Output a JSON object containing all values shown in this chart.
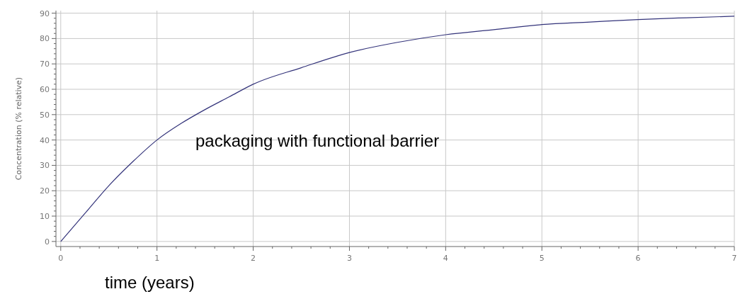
{
  "chart_data": {
    "type": "line",
    "ylabel": "Concentration (% relative)",
    "xlabel": "time (years)",
    "annotations": [
      "packaging with functional barrier"
    ],
    "x": [
      0,
      0.25,
      0.5,
      0.75,
      1,
      1.25,
      1.5,
      1.75,
      2,
      2.5,
      3,
      3.5,
      4,
      4.5,
      5,
      5.5,
      6,
      6.5,
      7
    ],
    "series": [
      {
        "color": "#33337a",
        "values": [
          0,
          11,
          22,
          31.5,
          40,
          46.5,
          52,
          57,
          62,
          68.5,
          74.5,
          78.5,
          81.5,
          83.5,
          85.5,
          86.5,
          87.5,
          88.2,
          88.8
        ]
      }
    ],
    "xlim": [
      -0.05,
      7
    ],
    "ylim": [
      -2,
      91
    ],
    "xticks": [
      0,
      {
        "value": 0.2,
        "label": null
      },
      {
        "value": 0.4,
        "label": null
      },
      {
        "value": 0.6,
        "label": null
      },
      {
        "value": 0.8,
        "label": null
      },
      1,
      {
        "value": 1.2,
        "label": null
      },
      {
        "value": 1.4,
        "label": null
      },
      {
        "value": 1.6,
        "label": null
      },
      {
        "value": 1.8,
        "label": null
      },
      2,
      {
        "value": 2.2,
        "label": null
      },
      {
        "value": 2.4,
        "label": null
      },
      {
        "value": 2.6,
        "label": null
      },
      {
        "value": 2.8,
        "label": null
      },
      3,
      {
        "value": 3.2,
        "label": null
      },
      {
        "value": 3.4,
        "label": null
      },
      {
        "value": 3.6,
        "label": null
      },
      {
        "value": 3.8,
        "label": null
      },
      4,
      {
        "value": 4.2,
        "label": null
      },
      {
        "value": 4.4,
        "label": null
      },
      {
        "value": 4.6,
        "label": null
      },
      {
        "value": 4.8,
        "label": null
      },
      5,
      {
        "value": 5.2,
        "label": null
      },
      {
        "value": 5.4,
        "label": null
      },
      {
        "value": 5.6,
        "label": null
      },
      {
        "value": 5.8,
        "label": null
      },
      6,
      {
        "value": 6.2,
        "label": null
      },
      {
        "value": 6.4,
        "label": null
      },
      {
        "value": 6.6,
        "label": null
      },
      {
        "value": 6.8,
        "label": null
      },
      7
    ],
    "yticks": [
      0,
      {
        "value": 2,
        "label": null
      },
      {
        "value": 4,
        "label": null
      },
      {
        "value": 6,
        "label": null
      },
      {
        "value": 8,
        "label": null
      },
      10,
      {
        "value": 12,
        "label": null
      },
      {
        "value": 14,
        "label": null
      },
      {
        "value": 16,
        "label": null
      },
      {
        "value": 18,
        "label": null
      },
      20,
      {
        "value": 22,
        "label": null
      },
      {
        "value": 24,
        "label": null
      },
      {
        "value": 26,
        "label": null
      },
      {
        "value": 28,
        "label": null
      },
      30,
      {
        "value": 32,
        "label": null
      },
      {
        "value": 34,
        "label": null
      },
      {
        "value": 36,
        "label": null
      },
      {
        "value": 38,
        "label": null
      },
      40,
      {
        "value": 42,
        "label": null
      },
      {
        "value": 44,
        "label": null
      },
      {
        "value": 46,
        "label": null
      },
      {
        "value": 48,
        "label": null
      },
      50,
      {
        "value": 52,
        "label": null
      },
      {
        "value": 54,
        "label": null
      },
      {
        "value": 56,
        "label": null
      },
      {
        "value": 58,
        "label": null
      },
      60,
      {
        "value": 62,
        "label": null
      },
      {
        "value": 64,
        "label": null
      },
      {
        "value": 66,
        "label": null
      },
      {
        "value": 68,
        "label": null
      },
      70,
      {
        "value": 72,
        "label": null
      },
      {
        "value": 74,
        "label": null
      },
      {
        "value": 76,
        "label": null
      },
      {
        "value": 78,
        "label": null
      },
      80,
      {
        "value": 82,
        "label": null
      },
      {
        "value": 84,
        "label": null
      },
      {
        "value": 86,
        "label": null
      },
      {
        "value": 88,
        "label": null
      },
      90
    ],
    "grid": true,
    "marker": "none",
    "line_style": "solid"
  }
}
